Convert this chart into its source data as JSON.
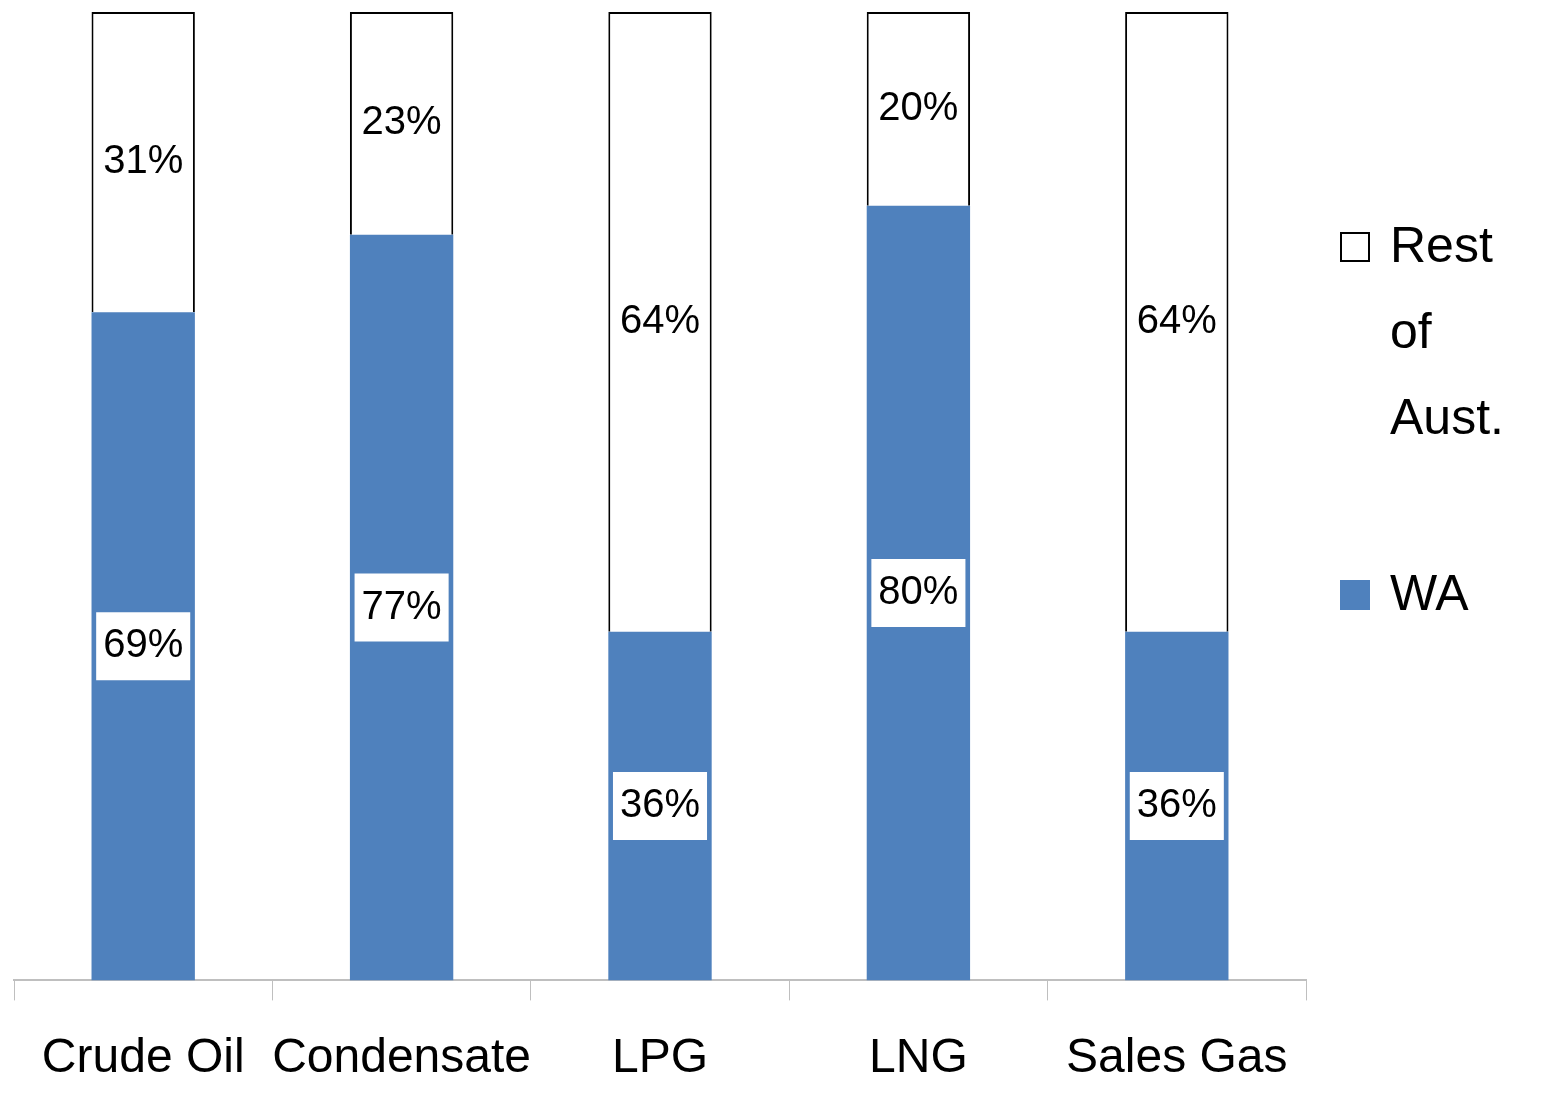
{
  "chart_data": {
    "type": "bar",
    "stacked": true,
    "categories": [
      "Crude Oil",
      "Condensate",
      "LPG",
      "LNG",
      "Sales Gas"
    ],
    "series": [
      {
        "name": "WA",
        "color": "#4f81bd",
        "values": [
          69,
          77,
          36,
          80,
          36
        ],
        "value_labels": [
          "69%",
          "77%",
          "36%",
          "80%",
          "36%"
        ]
      },
      {
        "name": "Rest of Aust.",
        "color": "#ffffff",
        "values": [
          31,
          23,
          64,
          20,
          64
        ],
        "value_labels": [
          "31%",
          "23%",
          "64%",
          "20%",
          "64%"
        ]
      }
    ],
    "legend": "right",
    "grid": false
  }
}
